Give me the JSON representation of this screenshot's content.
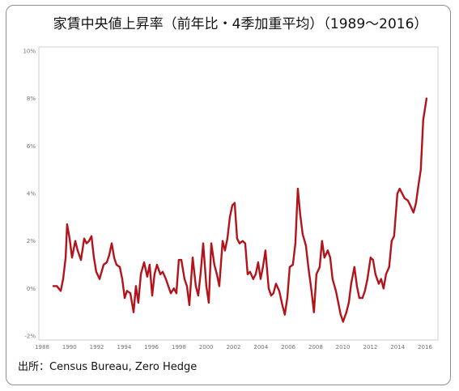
{
  "chart_data": {
    "type": "line",
    "title": "家賃中央値上昇率（前年比・4季加重平均）（1989～2016）",
    "xlim": [
      1988,
      2016
    ],
    "ylim": [
      -2,
      10
    ],
    "xticks": [
      1988,
      1990,
      1992,
      1994,
      1996,
      1998,
      2000,
      2002,
      2004,
      2006,
      2008,
      2010,
      2012,
      2014,
      2016
    ],
    "yticks": [
      -2,
      0,
      2,
      4,
      6,
      8,
      10
    ],
    "ytick_labels": [
      "-2%",
      "0%",
      "2%",
      "4%",
      "6%",
      "8%",
      "10%"
    ],
    "grid": false,
    "legend": "none",
    "x": [
      1988.83,
      1989.07,
      1989.36,
      1989.54,
      1989.72,
      1989.83,
      1990.01,
      1990.19,
      1990.43,
      1990.6,
      1990.84,
      1991.08,
      1991.25,
      1991.43,
      1991.61,
      1991.79,
      1991.96,
      1992.2,
      1992.5,
      1992.73,
      1992.91,
      1993.09,
      1993.27,
      1993.44,
      1993.68,
      1993.86,
      1994.04,
      1994.21,
      1994.45,
      1994.69,
      1994.86,
      1995.04,
      1995.22,
      1995.46,
      1995.69,
      1995.87,
      1996.05,
      1996.22,
      1996.4,
      1996.64,
      1996.82,
      1997.05,
      1997.23,
      1997.41,
      1997.64,
      1997.82,
      1998.0,
      1998.18,
      1998.41,
      1998.59,
      1998.77,
      1999.01,
      1999.24,
      1999.42,
      1999.6,
      1999.78,
      2000.01,
      2000.19,
      2000.37,
      2000.6,
      2000.78,
      2000.96,
      2001.2,
      2001.37,
      2001.55,
      2001.73,
      2001.91,
      2002.08,
      2002.26,
      2002.44,
      2002.67,
      2002.85,
      2003.03,
      2003.21,
      2003.44,
      2003.62,
      2003.8,
      2003.98,
      2004.15,
      2004.33,
      2004.57,
      2004.75,
      2004.92,
      2005.1,
      2005.34,
      2005.57,
      2005.75,
      2005.93,
      2006.11,
      2006.34,
      2006.52,
      2006.7,
      2006.88,
      2007.05,
      2007.29,
      2007.47,
      2007.7,
      2007.88,
      2008.06,
      2008.3,
      2008.47,
      2008.65,
      2008.89,
      2009.07,
      2009.24,
      2009.48,
      2009.66,
      2009.83,
      2010.01,
      2010.25,
      2010.43,
      2010.6,
      2010.84,
      2011.02,
      2011.2,
      2011.43,
      2011.61,
      2011.79,
      2012.02,
      2012.2,
      2012.38,
      2012.62,
      2012.79,
      2012.97,
      2013.15,
      2013.38,
      2013.56,
      2013.74,
      2013.98,
      2014.15,
      2014.33,
      2014.51,
      2014.75,
      2014.92,
      2015.16,
      2015.34,
      2015.51,
      2015.69,
      2015.87,
      2016.11
    ],
    "series": [
      {
        "color": "#b3141c",
        "values": [
          0.1,
          0.1,
          -0.1,
          0.4,
          1.3,
          2.7,
          2.1,
          1.3,
          2.0,
          1.6,
          1.2,
          2.1,
          1.9,
          2.0,
          2.2,
          1.3,
          0.7,
          0.4,
          1.0,
          1.1,
          1.4,
          1.9,
          1.3,
          1.0,
          0.9,
          0.4,
          -0.4,
          -0.1,
          -0.2,
          -1.0,
          0.1,
          -0.6,
          0.6,
          1.1,
          0.5,
          1.0,
          -0.3,
          0.6,
          1.0,
          0.6,
          0.7,
          0.4,
          0.1,
          -0.2,
          0.0,
          -0.2,
          1.2,
          1.2,
          0.4,
          0.1,
          -0.7,
          1.3,
          0.1,
          -0.3,
          0.7,
          1.9,
          0.1,
          -0.6,
          1.9,
          1.0,
          0.6,
          0.1,
          2.0,
          1.6,
          2.1,
          3.0,
          3.5,
          3.6,
          2.1,
          1.9,
          2.0,
          1.9,
          0.6,
          0.7,
          0.4,
          0.6,
          1.1,
          0.4,
          0.9,
          1.6,
          0.0,
          -0.3,
          -0.2,
          0.2,
          -0.1,
          -0.7,
          -1.1,
          -0.4,
          0.9,
          1.0,
          1.9,
          4.2,
          3.1,
          2.3,
          1.8,
          0.9,
          -0.1,
          -1.0,
          0.6,
          0.9,
          2.0,
          1.3,
          1.6,
          1.3,
          0.4,
          -0.1,
          -0.6,
          -1.1,
          -1.4,
          -1.0,
          -0.6,
          0.2,
          0.9,
          0.1,
          -0.4,
          -0.4,
          -0.1,
          0.4,
          1.3,
          1.2,
          0.6,
          0.2,
          0.4,
          0.0,
          0.6,
          0.9,
          2.0,
          2.2,
          4.0,
          4.2,
          4.0,
          3.8,
          3.7,
          3.5,
          3.2,
          3.6,
          4.3,
          5.0,
          7.1,
          8.0
        ]
      }
    ]
  },
  "source": "出所：Census Bureau, Zero Hedge"
}
